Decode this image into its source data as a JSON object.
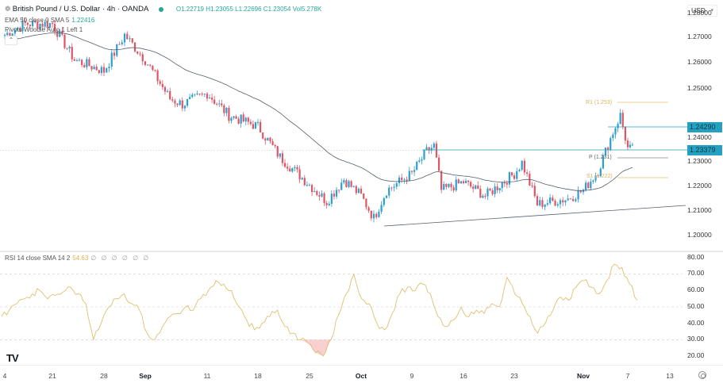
{
  "header": {
    "symbol_title": "British Pound / U.S. Dollar · 4h · OANDA",
    "ohlc": {
      "open_label": "O",
      "open": "1.22719",
      "high_label": "H",
      "high": "1.23055",
      "low_label": "L",
      "low": "1.22696",
      "close_label": "C",
      "close": "1.23054",
      "vol_label": "Vol",
      "vol": "5.278K"
    },
    "ema_label": "EMA 50 close 0 SMA 5",
    "ema_value": "1.22416",
    "pivots_label": "Pivots Woodie Auto 1 Left 1",
    "collapse_icon": "chevron-up-icon",
    "currency_select": "USD"
  },
  "price_axis": {
    "ticks": [
      "1.28000",
      "1.27000",
      "1.26000",
      "1.25000",
      "1.24000",
      "1.23000",
      "1.22000",
      "1.21000",
      "1.20000"
    ],
    "tags": [
      {
        "label": "1.24290",
        "color": "#26a0c0"
      },
      {
        "label": "1.23379",
        "color": "#26a0c0"
      }
    ]
  },
  "pivot_labels": {
    "r1": "R1 (1.253)",
    "p": "P (1.231)",
    "s1": "S1 (1.222)"
  },
  "rsi": {
    "label": "RSI 14 close SMA 14 2",
    "value": "54.63",
    "nulls": "∅ ∅ ∅ ∅ ∅ ∅",
    "ticks": [
      "80.00",
      "70.00",
      "60.00",
      "50.00",
      "40.00",
      "30.00",
      "20.00"
    ]
  },
  "time_axis": {
    "labels": [
      {
        "text": "4",
        "bold": false
      },
      {
        "text": "21",
        "bold": false
      },
      {
        "text": "28",
        "bold": false
      },
      {
        "text": "Sep",
        "bold": true
      },
      {
        "text": "11",
        "bold": false
      },
      {
        "text": "18",
        "bold": false
      },
      {
        "text": "25",
        "bold": false
      },
      {
        "text": "Oct",
        "bold": true
      },
      {
        "text": "9",
        "bold": false
      },
      {
        "text": "16",
        "bold": false
      },
      {
        "text": "23",
        "bold": false
      },
      {
        "text": "Nov",
        "bold": true
      },
      {
        "text": "7",
        "bold": false
      },
      {
        "text": "13",
        "bold": false
      }
    ]
  },
  "branding": {
    "logo": "TV"
  },
  "colors": {
    "up": "#2a9fd0",
    "down": "#e05565",
    "ema": "#555e6e",
    "resistance": "#26a0c0",
    "pivot_r1": "#e6c36a",
    "pivot_p": "#888888",
    "pivot_s1": "#e6c36a",
    "rsi_line": "#e0c070",
    "rsi_oversold_fill": "#f7c4c4"
  },
  "chart_data": [
    {
      "type": "candlestick",
      "title": "British Pound / U.S. Dollar · 4h · OANDA",
      "ylabel": "USD",
      "ylim": [
        1.195,
        1.285
      ],
      "x": [
        "Aug 14",
        "Aug 21",
        "Aug 28",
        "Sep 1",
        "Sep 11",
        "Sep 18",
        "Sep 25",
        "Oct 1",
        "Oct 9",
        "Oct 16",
        "Oct 23",
        "Nov 1",
        "Nov 7",
        "Nov 13"
      ],
      "close_path": [
        {
          "date": "Aug 14",
          "close": 1.272
        },
        {
          "date": "Aug 17",
          "close": 1.276
        },
        {
          "date": "Aug 21",
          "close": 1.276
        },
        {
          "date": "Aug 24",
          "close": 1.263
        },
        {
          "date": "Aug 28",
          "close": 1.259
        },
        {
          "date": "Aug 30",
          "close": 1.272
        },
        {
          "date": "Sep 1",
          "close": 1.263
        },
        {
          "date": "Sep 5",
          "close": 1.249
        },
        {
          "date": "Sep 7",
          "close": 1.247
        },
        {
          "date": "Sep 11",
          "close": 1.251
        },
        {
          "date": "Sep 14",
          "close": 1.243
        },
        {
          "date": "Sep 18",
          "close": 1.239
        },
        {
          "date": "Sep 21",
          "close": 1.228
        },
        {
          "date": "Sep 25",
          "close": 1.218
        },
        {
          "date": "Sep 27",
          "close": 1.212
        },
        {
          "date": "Sep 29",
          "close": 1.22
        },
        {
          "date": "Oct 1",
          "close": 1.214
        },
        {
          "date": "Oct 3",
          "close": 1.206
        },
        {
          "date": "Oct 5",
          "close": 1.216
        },
        {
          "date": "Oct 9",
          "close": 1.222
        },
        {
          "date": "Oct 11",
          "close": 1.23
        },
        {
          "date": "Oct 12",
          "close": 1.232
        },
        {
          "date": "Oct 13",
          "close": 1.216
        },
        {
          "date": "Oct 16",
          "close": 1.219
        },
        {
          "date": "Oct 19",
          "close": 1.214
        },
        {
          "date": "Oct 23",
          "close": 1.222
        },
        {
          "date": "Oct 24",
          "close": 1.226
        },
        {
          "date": "Oct 26",
          "close": 1.211
        },
        {
          "date": "Oct 30",
          "close": 1.213
        },
        {
          "date": "Nov 1",
          "close": 1.216
        },
        {
          "date": "Nov 3",
          "close": 1.223
        },
        {
          "date": "Nov 5",
          "close": 1.237
        },
        {
          "date": "Nov 6",
          "close": 1.243
        },
        {
          "date": "Nov 7",
          "close": 1.231
        },
        {
          "date": "Nov 8",
          "close": 1.2305
        }
      ],
      "series": [
        {
          "name": "EMA 50",
          "last": 1.22416
        },
        {
          "name": "Resistance 1.24290",
          "value": 1.2429
        },
        {
          "name": "Resistance 1.23379",
          "value": 1.23379
        },
        {
          "name": "Pivot R1",
          "value": 1.253
        },
        {
          "name": "Pivot P",
          "value": 1.231
        },
        {
          "name": "Pivot S1",
          "value": 1.222
        }
      ],
      "annotations": [
        "Ascending trendline from Oct 3 low (~1.204) to right edge (~1.212)"
      ]
    },
    {
      "type": "line",
      "title": "RSI 14 close SMA 14 2",
      "ylim": [
        15,
        82
      ],
      "bands": [
        30,
        50,
        70
      ],
      "series": [
        {
          "name": "RSI",
          "values": [
            44,
            48,
            52,
            55,
            58,
            60,
            55,
            57,
            59,
            62,
            58,
            52,
            30,
            40,
            50,
            55,
            58,
            52,
            48,
            34,
            30,
            38,
            44,
            46,
            50,
            48,
            55,
            60,
            66,
            64,
            60,
            50,
            42,
            36,
            40,
            44,
            48,
            38,
            34,
            30,
            28,
            22,
            20,
            30,
            45,
            58,
            70,
            55,
            52,
            40,
            36,
            46,
            58,
            62,
            60,
            64,
            58,
            44,
            38,
            42,
            50,
            44,
            48,
            46,
            52,
            50,
            68,
            58,
            52,
            44,
            34,
            40,
            48,
            56,
            54,
            62,
            66,
            62,
            58,
            66,
            76,
            74,
            64,
            54
          ]
        }
      ],
      "last": 54.63
    }
  ]
}
